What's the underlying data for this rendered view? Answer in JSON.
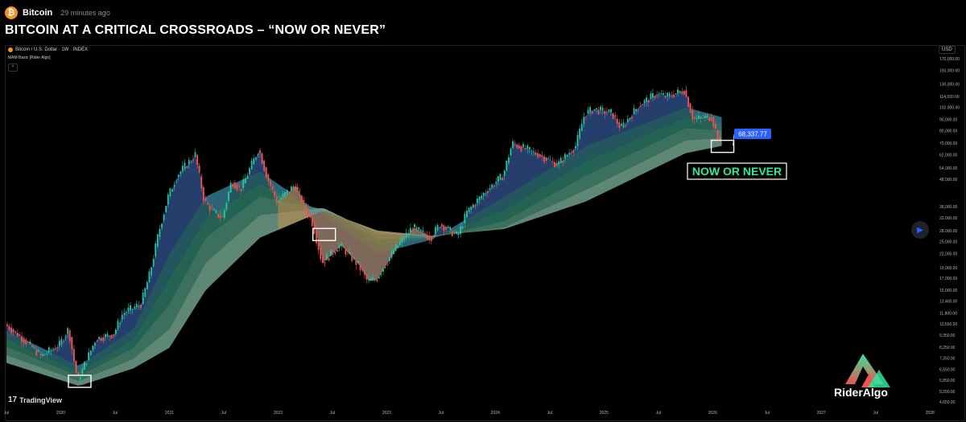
{
  "header": {
    "source_name": "Bitcoin",
    "source_icon": "bitcoin-icon",
    "time_ago": "29 minutes ago",
    "headline": "BITCOIN AT A CRITICAL CROSSROADS – “NOW OR NEVER”"
  },
  "chart_header": {
    "symbol": "Bitcoin / U.S. Dollar · 1W · INDEX",
    "indicator": "MAM Basic [Rider Algo]",
    "collapse": "^"
  },
  "currency": "USD",
  "watermark": "TradingView",
  "brand": {
    "name": "RiderAlgo",
    "icon": "rider-algo-logo"
  },
  "colors": {
    "up": "#26c6a6",
    "down": "#ef5350",
    "bull_ribbon": "#2e7d6b",
    "bear_ribbon": "#c98a4a",
    "price_label_bg": "#2962ff",
    "callout": "#2ee89c"
  },
  "chart_data": {
    "type": "candlestick",
    "timeframe": "1W",
    "y_scale": "log",
    "ylim": [
      4500,
      180000
    ],
    "y_ticks": [
      "170,000.00",
      "150,000.00",
      "130,000.00",
      "114,000.00",
      "102,000.00",
      "90,000.00",
      "80,000.00",
      "70,000.00",
      "62,000.00",
      "54,000.00",
      "48,000.00",
      "36,000.00",
      "32,000.00",
      "28,000.00",
      "25,000.00",
      "22,000.00",
      "19,000.00",
      "17,000.00",
      "15,000.00",
      "13,400.00",
      "11,800.00",
      "10,550.00",
      "9,350.00",
      "8,250.00",
      "7,350.00",
      "6,550.00",
      "5,850.00",
      "5,200.00",
      "4,650.00"
    ],
    "x_ticks": [
      "Jul",
      "2020",
      "Jul",
      "2021",
      "Jul",
      "2022",
      "Jul",
      "2023",
      "Jul",
      "2024",
      "Jul",
      "2025",
      "Jul",
      "2026",
      "Jul",
      "2027",
      "Jul",
      "2028"
    ],
    "last_price": "68,337.77",
    "price_path": [
      [
        "2019-07",
        10500
      ],
      [
        "2019-09",
        9000
      ],
      [
        "2019-11",
        7500
      ],
      [
        "2020-01",
        8500
      ],
      [
        "2020-02",
        10000
      ],
      [
        "2020-03",
        5800
      ],
      [
        "2020-05",
        9000
      ],
      [
        "2020-07",
        9500
      ],
      [
        "2020-08",
        11800
      ],
      [
        "2020-10",
        13000
      ],
      [
        "2020-11",
        18000
      ],
      [
        "2020-12",
        28000
      ],
      [
        "2021-01",
        40000
      ],
      [
        "2021-02",
        50000
      ],
      [
        "2021-04",
        62000
      ],
      [
        "2021-05",
        38000
      ],
      [
        "2021-06",
        34000
      ],
      [
        "2021-07",
        32000
      ],
      [
        "2021-08",
        47000
      ],
      [
        "2021-09",
        43000
      ],
      [
        "2021-11",
        66000
      ],
      [
        "2021-12",
        48000
      ],
      [
        "2022-01",
        38000
      ],
      [
        "2022-03",
        45000
      ],
      [
        "2022-05",
        30000
      ],
      [
        "2022-06",
        20000
      ],
      [
        "2022-08",
        24000
      ],
      [
        "2022-10",
        19500
      ],
      [
        "2022-11",
        16500
      ],
      [
        "2022-12",
        16800
      ],
      [
        "2023-02",
        23000
      ],
      [
        "2023-04",
        29000
      ],
      [
        "2023-06",
        26000
      ],
      [
        "2023-07",
        30000
      ],
      [
        "2023-09",
        26500
      ],
      [
        "2023-10",
        34000
      ],
      [
        "2023-12",
        42000
      ],
      [
        "2024-02",
        50000
      ],
      [
        "2024-03",
        70000
      ],
      [
        "2024-06",
        62000
      ],
      [
        "2024-08",
        56000
      ],
      [
        "2024-10",
        68000
      ],
      [
        "2024-11",
        95000
      ],
      [
        "2024-12",
        100000
      ],
      [
        "2025-02",
        96000
      ],
      [
        "2025-03",
        82000
      ],
      [
        "2025-05",
        104000
      ],
      [
        "2025-07",
        118000
      ],
      [
        "2025-08",
        114000
      ],
      [
        "2025-10",
        122000
      ],
      [
        "2025-11",
        90000
      ],
      [
        "2026-01",
        92000
      ],
      [
        "2026-02",
        68337.77
      ]
    ],
    "ribbon_bands": [
      [
        [
          "2019-07",
          9800
        ],
        [
          "2020-03",
          6800
        ],
        [
          "2020-09",
          10000
        ],
        [
          "2021-01",
          22000
        ],
        [
          "2021-05",
          40000
        ],
        [
          "2021-11",
          52000
        ],
        [
          "2022-06",
          33000
        ],
        [
          "2022-12",
          22000
        ],
        [
          "2023-06",
          25500
        ],
        [
          "2024-02",
          40000
        ],
        [
          "2024-11",
          68000
        ],
        [
          "2025-10",
          102000
        ],
        [
          "2026-02",
          92000
        ]
      ],
      [
        [
          "2019-07",
          9000
        ],
        [
          "2020-03",
          6400
        ],
        [
          "2020-09",
          9000
        ],
        [
          "2021-01",
          17000
        ],
        [
          "2021-05",
          32000
        ],
        [
          "2021-11",
          46000
        ],
        [
          "2022-06",
          34000
        ],
        [
          "2022-12",
          24000
        ],
        [
          "2023-06",
          25800
        ],
        [
          "2024-02",
          35000
        ],
        [
          "2024-11",
          58000
        ],
        [
          "2025-10",
          92000
        ],
        [
          "2026-02",
          86000
        ]
      ],
      [
        [
          "2019-07",
          8300
        ],
        [
          "2020-03",
          6100
        ],
        [
          "2020-09",
          8200
        ],
        [
          "2021-01",
          13000
        ],
        [
          "2021-05",
          26000
        ],
        [
          "2021-11",
          40000
        ],
        [
          "2022-06",
          35000
        ],
        [
          "2022-12",
          25500
        ],
        [
          "2023-06",
          26000
        ],
        [
          "2024-02",
          31000
        ],
        [
          "2024-11",
          50000
        ],
        [
          "2025-10",
          82000
        ],
        [
          "2026-02",
          80000
        ]
      ],
      [
        [
          "2019-07",
          7600
        ],
        [
          "2020-03",
          5800
        ],
        [
          "2020-09",
          7300
        ],
        [
          "2021-01",
          10000
        ],
        [
          "2021-05",
          20000
        ],
        [
          "2021-11",
          33000
        ],
        [
          "2022-06",
          35500
        ],
        [
          "2022-12",
          27000
        ],
        [
          "2023-06",
          26300
        ],
        [
          "2024-02",
          29000
        ],
        [
          "2024-11",
          43000
        ],
        [
          "2025-10",
          72000
        ],
        [
          "2026-02",
          74000
        ]
      ],
      [
        [
          "2019-07",
          7000
        ],
        [
          "2020-03",
          5500
        ],
        [
          "2020-09",
          6600
        ],
        [
          "2021-01",
          8200
        ],
        [
          "2021-05",
          15000
        ],
        [
          "2021-11",
          26000
        ],
        [
          "2022-06",
          34500
        ],
        [
          "2022-12",
          28000
        ],
        [
          "2023-06",
          26500
        ],
        [
          "2024-02",
          28500
        ],
        [
          "2024-11",
          38000
        ],
        [
          "2025-10",
          63000
        ],
        [
          "2026-02",
          68000
        ]
      ]
    ],
    "highlight_boxes": [
      {
        "date": "2020-03",
        "price": 5800
      },
      {
        "date": "2022-06",
        "price": 27000
      },
      {
        "date": "2026-02",
        "price": 68000
      }
    ],
    "annotation": "NOW OR NEVER"
  }
}
